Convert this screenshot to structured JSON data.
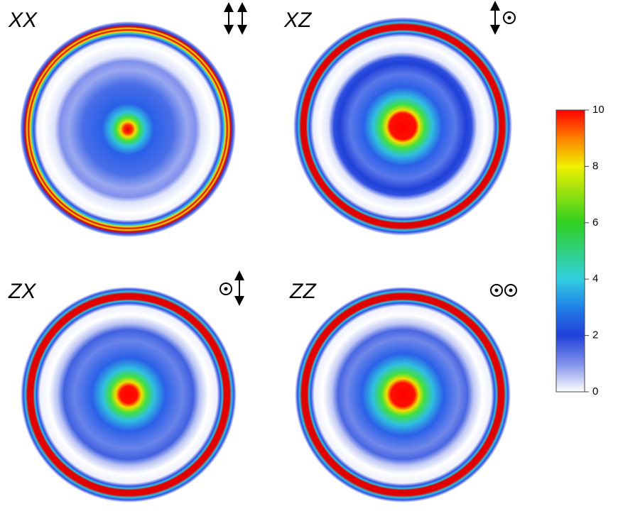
{
  "chart_data": {
    "type": "image-grid",
    "panels": [
      {
        "label": "XX"
      },
      {
        "label": "XZ"
      },
      {
        "label": "ZX"
      },
      {
        "label": "ZZ"
      }
    ],
    "colorbar": {
      "lim": [
        0,
        10
      ],
      "ticks": [
        0,
        2,
        4,
        6,
        8,
        10
      ]
    }
  }
}
